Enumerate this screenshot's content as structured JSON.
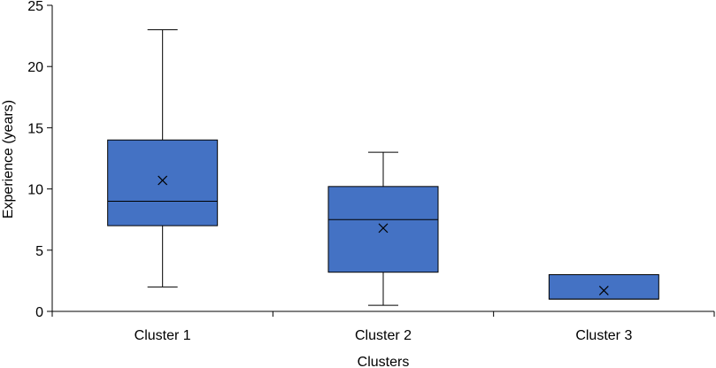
{
  "chart_data": {
    "type": "boxplot",
    "title": "",
    "xlabel": "Clusters",
    "ylabel": "Experience (years)",
    "ylim": [
      0,
      25
    ],
    "yticks": [
      0,
      5,
      10,
      15,
      20,
      25
    ],
    "grid": false,
    "legend": "none",
    "categories": [
      "Cluster 1",
      "Cluster 2",
      "Cluster 3"
    ],
    "boxes": [
      {
        "category": "Cluster 1",
        "min": 2,
        "q1": 7,
        "median": 9,
        "q3": 14,
        "max": 23,
        "mean": 10.7
      },
      {
        "category": "Cluster 2",
        "min": 0.5,
        "q1": 3.2,
        "median": 7.5,
        "q3": 10.2,
        "max": 13,
        "mean": 6.8
      },
      {
        "category": "Cluster 3",
        "min": 1,
        "q1": 1,
        "median": 1,
        "q3": 3,
        "max": 3,
        "mean": 1.7
      }
    ],
    "colors": {
      "box_fill": "#4472C4",
      "line": "#000000",
      "axis": "#000000"
    }
  }
}
